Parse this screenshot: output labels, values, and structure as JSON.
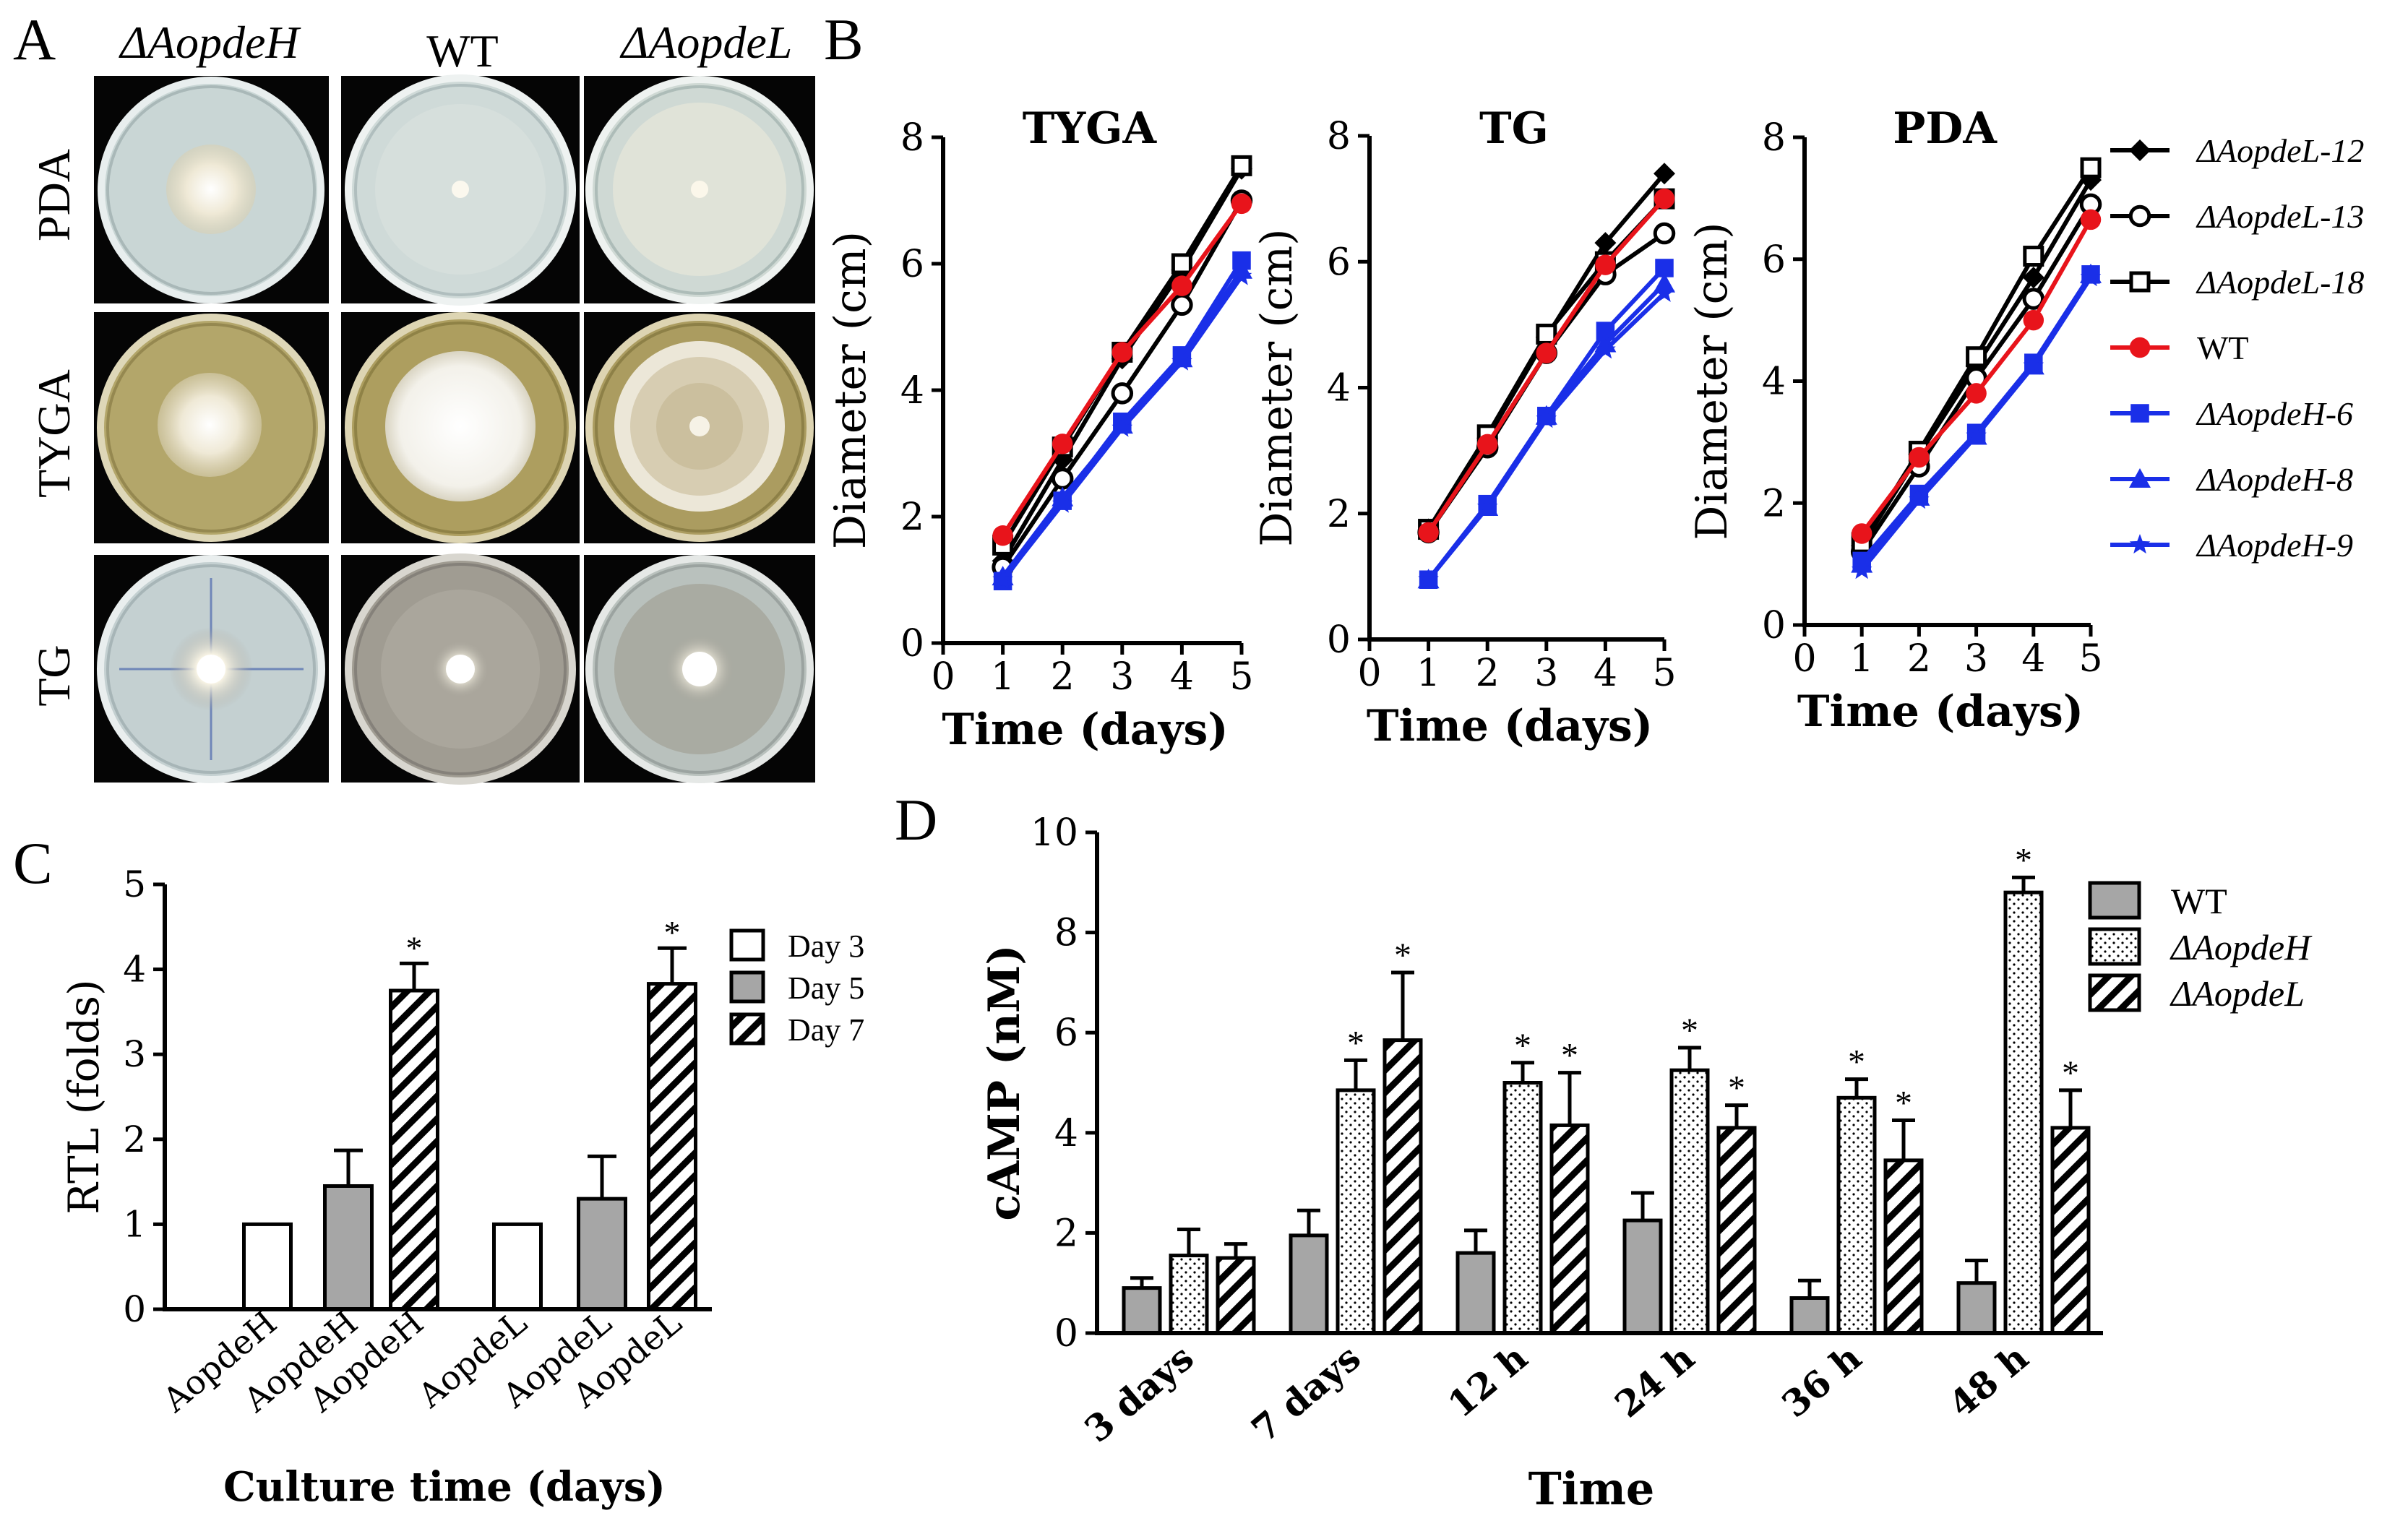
{
  "panel_labels": {
    "a": "A",
    "b": "B",
    "c": "C",
    "d": "D"
  },
  "panel_a": {
    "column_labels": [
      "ΔAopdeH",
      "WT",
      "ΔAopdeL"
    ],
    "row_labels": [
      "PDA",
      "TYGA",
      "TG"
    ],
    "colors": {
      "background": "#050505",
      "pda_agar": "#c9d6d5",
      "tyga_agar": "#b3a66a",
      "tg_agar": "#a7a49a",
      "colony": "#f4f1e6"
    }
  },
  "legend_b": [
    {
      "label": "ΔAopdeL-12",
      "marker": "diamond-filled",
      "color": "#000000"
    },
    {
      "label": "ΔAopdeL-13",
      "marker": "circle-open",
      "color": "#000000"
    },
    {
      "label": "ΔAopdeL-18",
      "marker": "square-open",
      "color": "#000000"
    },
    {
      "label": "WT",
      "marker": "circle-filled",
      "color": "#e8141b"
    },
    {
      "label": "ΔAopdeH-6",
      "marker": "square-filled",
      "color": "#1a2fe8"
    },
    {
      "label": "ΔAopdeH-8",
      "marker": "triangle-filled",
      "color": "#1a2fe8"
    },
    {
      "label": "ΔAopdeH-9",
      "marker": "star",
      "color": "#1a2fe8"
    }
  ],
  "legend_c": [
    "Day 3",
    "Day 5",
    "Day 7"
  ],
  "legend_d": [
    "WT",
    "ΔAopdeH",
    "ΔAopdeL"
  ],
  "chart_data": [
    {
      "id": "B-TYGA",
      "type": "line",
      "title": "TYGA",
      "xlabel": "Time (days)",
      "ylabel": "Diameter (cm)",
      "x": [
        1,
        2,
        3,
        4,
        5
      ],
      "xlim": [
        0,
        5
      ],
      "ylim": [
        0,
        8
      ],
      "xticks": [
        "0",
        "1",
        "2",
        "3",
        "4",
        "5"
      ],
      "yticks": [
        "0",
        "2",
        "4",
        "6",
        "8"
      ],
      "series": [
        {
          "name": "ΔAopdeL-12",
          "values": [
            1.3,
            2.9,
            4.5,
            5.9,
            7.5
          ]
        },
        {
          "name": "ΔAopdeL-13",
          "values": [
            1.2,
            2.6,
            3.95,
            5.35,
            7.0
          ]
        },
        {
          "name": "ΔAopdeL-18",
          "values": [
            1.55,
            3.1,
            4.6,
            6.0,
            7.55
          ]
        },
        {
          "name": "WT",
          "values": [
            1.7,
            3.15,
            4.6,
            5.65,
            6.95
          ]
        },
        {
          "name": "ΔAopdeH-6",
          "values": [
            0.98,
            2.25,
            3.5,
            4.55,
            6.05
          ]
        },
        {
          "name": "ΔAopdeH-8",
          "values": [
            1.05,
            2.3,
            3.45,
            4.5,
            5.9
          ]
        },
        {
          "name": "ΔAopdeH-9",
          "values": [
            1.0,
            2.2,
            3.4,
            4.45,
            5.8
          ]
        }
      ]
    },
    {
      "id": "B-TG",
      "type": "line",
      "title": "TG",
      "xlabel": "Time (days)",
      "ylabel": "Diameter (cm)",
      "x": [
        1,
        2,
        3,
        4,
        5
      ],
      "xlim": [
        0,
        5
      ],
      "ylim": [
        0,
        8
      ],
      "xticks": [
        "0",
        "1",
        "2",
        "3",
        "4",
        "5"
      ],
      "yticks": [
        "0",
        "2",
        "4",
        "6",
        "8"
      ],
      "series": [
        {
          "name": "ΔAopdeL-12",
          "values": [
            1.75,
            3.2,
            4.8,
            6.3,
            7.4
          ]
        },
        {
          "name": "ΔAopdeL-13",
          "values": [
            1.7,
            3.05,
            4.55,
            5.8,
            6.45
          ]
        },
        {
          "name": "ΔAopdeL-18",
          "values": [
            1.75,
            3.25,
            4.85,
            6.0,
            7.0
          ]
        },
        {
          "name": "WT",
          "values": [
            1.7,
            3.1,
            4.55,
            5.95,
            7.0
          ]
        },
        {
          "name": "ΔAopdeH-6",
          "values": [
            0.95,
            2.15,
            3.55,
            4.9,
            5.9
          ]
        },
        {
          "name": "ΔAopdeH-8",
          "values": [
            0.95,
            2.1,
            3.55,
            4.7,
            5.65
          ]
        },
        {
          "name": "ΔAopdeH-9",
          "values": [
            0.95,
            2.1,
            3.5,
            4.6,
            5.5
          ]
        }
      ]
    },
    {
      "id": "B-PDA",
      "type": "line",
      "title": "PDA",
      "xlabel": "Time (days)",
      "ylabel": "Diameter (cm)",
      "x": [
        1,
        2,
        3,
        4,
        5
      ],
      "xlim": [
        0,
        5
      ],
      "ylim": [
        0,
        8
      ],
      "xticks": [
        "0",
        "1",
        "2",
        "3",
        "4",
        "5"
      ],
      "yticks": [
        "0",
        "2",
        "4",
        "6",
        "8"
      ],
      "series": [
        {
          "name": "ΔAopdeL-12",
          "values": [
            1.3,
            2.8,
            4.25,
            5.7,
            7.3
          ]
        },
        {
          "name": "ΔAopdeL-13",
          "values": [
            1.2,
            2.6,
            4.05,
            5.35,
            6.9
          ]
        },
        {
          "name": "ΔAopdeL-18",
          "values": [
            1.35,
            2.85,
            4.4,
            6.05,
            7.5
          ]
        },
        {
          "name": "WT",
          "values": [
            1.5,
            2.75,
            3.8,
            5.0,
            6.65
          ]
        },
        {
          "name": "ΔAopdeH-6",
          "values": [
            1.05,
            2.15,
            3.15,
            4.3,
            5.75
          ]
        },
        {
          "name": "ΔAopdeH-8",
          "values": [
            1.0,
            2.1,
            3.1,
            4.25,
            5.75
          ]
        },
        {
          "name": "ΔAopdeH-9",
          "values": [
            0.9,
            2.05,
            3.1,
            4.25,
            5.7
          ]
        }
      ]
    },
    {
      "id": "C",
      "type": "bar",
      "title": "",
      "xlabel": "Culture time (days)",
      "ylabel": "RTL (folds)",
      "categories": [
        "AopdeH",
        "AopdeH",
        "AopdeH",
        "AopdeL",
        "AopdeL",
        "AopdeL"
      ],
      "bar_style": [
        "Day 3",
        "Day 5",
        "Day 7",
        "Day 3",
        "Day 5",
        "Day 7"
      ],
      "values": [
        1.0,
        1.45,
        3.75,
        1.0,
        1.3,
        3.83
      ],
      "errors": [
        0,
        0.42,
        0.32,
        0,
        0.5,
        0.42
      ],
      "significant": [
        false,
        false,
        true,
        false,
        false,
        true
      ],
      "annotation": "*",
      "ylim": [
        0,
        5
      ],
      "yticks": [
        "0",
        "1",
        "2",
        "3",
        "4",
        "5"
      ]
    },
    {
      "id": "D",
      "type": "bar",
      "title": "",
      "xlabel": "Time",
      "ylabel": "cAMP (nM)",
      "categories": [
        "3 days",
        "7 days",
        "12 h",
        "24 h",
        "36 h",
        "48 h"
      ],
      "series": [
        {
          "name": "WT",
          "values": [
            0.9,
            1.95,
            1.6,
            2.25,
            0.7,
            1.0
          ],
          "errors": [
            0.2,
            0.5,
            0.45,
            0.55,
            0.35,
            0.45
          ],
          "significant": [
            false,
            false,
            false,
            false,
            false,
            false
          ]
        },
        {
          "name": "ΔAopdeH",
          "values": [
            1.55,
            4.85,
            5.0,
            5.25,
            4.7,
            8.8
          ],
          "errors": [
            0.52,
            0.6,
            0.4,
            0.45,
            0.37,
            0.3
          ],
          "significant": [
            false,
            true,
            true,
            true,
            true,
            true
          ]
        },
        {
          "name": "ΔAopdeL",
          "values": [
            1.5,
            5.85,
            4.15,
            4.1,
            3.45,
            4.1
          ],
          "errors": [
            0.28,
            1.35,
            1.05,
            0.45,
            0.8,
            0.75
          ],
          "significant": [
            false,
            true,
            true,
            true,
            true,
            true
          ]
        }
      ],
      "annotation": "*",
      "ylim": [
        0,
        10
      ],
      "yticks": [
        "0",
        "2",
        "4",
        "6",
        "8",
        "10"
      ]
    }
  ]
}
